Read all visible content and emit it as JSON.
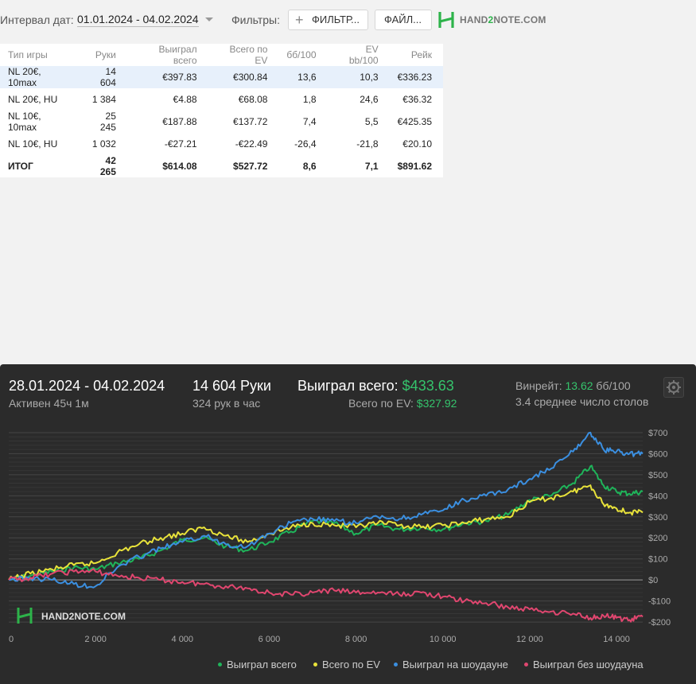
{
  "topbar": {
    "date_interval_label": "Интервал дат:",
    "date_interval_value": "01.01.2024 - 04.02.2024",
    "filters_label": "Фильтры:",
    "filter_button": "ФИЛЬТР...",
    "file_button": "ФАЙЛ...",
    "logo_text_a": "HAND",
    "logo_text_2": "2",
    "logo_text_b": "NOTE.COM"
  },
  "table": {
    "headers": [
      "Тип игры",
      "Руки",
      "Выиграл всего",
      "Всего по EV",
      "бб/100",
      "EV bb/100",
      "Рейк"
    ],
    "rows": [
      {
        "game": "NL 20€, 10max",
        "hands": "14 604",
        "won": "€397.83",
        "ev": "€300.84",
        "bb100": "13,6",
        "evbb100": "10,3",
        "rake": "€336.23",
        "selected": true
      },
      {
        "game": "NL 20€, HU",
        "hands": "1 384",
        "won": "€4.88",
        "ev": "€68.08",
        "bb100": "1,8",
        "evbb100": "24,6",
        "rake": "€36.32"
      },
      {
        "game": "NL 10€, 10max",
        "hands": "25 245",
        "won": "€187.88",
        "ev": "€137.72",
        "bb100": "7,4",
        "evbb100": "5,5",
        "rake": "€425.35"
      },
      {
        "game": "NL 10€, HU",
        "hands": "1 032",
        "won": "-€27.21",
        "ev": "-€22.49",
        "bb100": "-26,4",
        "evbb100": "-21,8",
        "rake": "€20.10"
      }
    ],
    "total": {
      "game": "ИТОГ",
      "hands": "42 265",
      "won": "$614.08",
      "ev": "$527.72",
      "bb100": "8,6",
      "evbb100": "7,1",
      "rake": "$891.62"
    }
  },
  "panel": {
    "date_range": "28.01.2024 - 04.02.2024",
    "active": "Активен 45ч 1м",
    "hands": "14 604 Руки",
    "hands_per_hour": "324 рук в час",
    "won_label": "Выиграл всего:",
    "won_value": "$433.63",
    "ev_label": "Всего по EV:",
    "ev_value": "$327.92",
    "winrate_label": "Винрейт:",
    "winrate_value": "13.62",
    "winrate_unit": "бб/100",
    "avg_tables": "3.4 среднее число столов"
  },
  "chart_data": {
    "type": "line",
    "x_ticks": [
      0,
      2000,
      4000,
      6000,
      8000,
      10000,
      12000,
      14000
    ],
    "x_tick_labels": [
      "0",
      "2 000",
      "4 000",
      "6 000",
      "8 000",
      "10 000",
      "12 000",
      "14 000"
    ],
    "xlim": [
      0,
      14604
    ],
    "y_ticks": [
      -200,
      -100,
      0,
      100,
      200,
      300,
      400,
      500,
      600,
      700
    ],
    "y_tick_labels": [
      "-$200",
      "-$100",
      "$0",
      "$100",
      "$200",
      "$300",
      "$400",
      "$500",
      "$600",
      "$700"
    ],
    "ylim": [
      -230,
      730
    ],
    "grid": true,
    "legend_position": "bottom",
    "watermark": "HAND2NOTE.COM",
    "series": [
      {
        "name": "Выиграл всего",
        "color": "#1fb45a",
        "x": [
          0,
          500,
          1000,
          1500,
          2000,
          2500,
          3000,
          3500,
          4000,
          4500,
          5000,
          5500,
          6000,
          6500,
          7000,
          7500,
          8000,
          8500,
          9000,
          9500,
          10000,
          10500,
          11000,
          11500,
          12000,
          12500,
          13000,
          13400,
          13700,
          14000,
          14300,
          14604
        ],
        "y": [
          0,
          20,
          40,
          60,
          50,
          80,
          100,
          140,
          190,
          200,
          160,
          140,
          180,
          230,
          280,
          270,
          220,
          260,
          240,
          250,
          240,
          270,
          280,
          310,
          380,
          400,
          460,
          540,
          450,
          420,
          410,
          420
        ]
      },
      {
        "name": "Всего по EV",
        "color": "#e8e23a",
        "x": [
          0,
          500,
          1000,
          1500,
          2000,
          2500,
          3000,
          3500,
          4000,
          4500,
          5000,
          5500,
          6000,
          6500,
          7000,
          7500,
          8000,
          8500,
          9000,
          9500,
          10000,
          10500,
          11000,
          11500,
          12000,
          12500,
          13000,
          13400,
          13700,
          14000,
          14300,
          14604
        ],
        "y": [
          0,
          30,
          50,
          70,
          80,
          130,
          170,
          200,
          220,
          250,
          210,
          180,
          220,
          250,
          270,
          260,
          250,
          270,
          260,
          250,
          260,
          270,
          290,
          300,
          370,
          390,
          420,
          450,
          360,
          340,
          320,
          320
        ]
      },
      {
        "name": "Выиграл на шоудауне",
        "color": "#3b8fe0",
        "x": [
          0,
          500,
          1000,
          1500,
          2000,
          2500,
          3000,
          3500,
          4000,
          4500,
          5000,
          5500,
          6000,
          6500,
          7000,
          7500,
          8000,
          8500,
          9000,
          9500,
          10000,
          10500,
          11000,
          11500,
          12000,
          12500,
          13000,
          13400,
          13700,
          14000,
          14300,
          14604
        ],
        "y": [
          0,
          10,
          0,
          -20,
          -30,
          60,
          110,
          150,
          180,
          210,
          170,
          160,
          220,
          270,
          290,
          280,
          270,
          300,
          290,
          310,
          330,
          380,
          400,
          430,
          480,
          530,
          610,
          700,
          620,
          610,
          600,
          600
        ]
      },
      {
        "name": "Выиграл без шоудауна",
        "color": "#e0466f",
        "x": [
          0,
          500,
          1000,
          1500,
          2000,
          2500,
          3000,
          3500,
          4000,
          4500,
          5000,
          5500,
          6000,
          6500,
          7000,
          7500,
          8000,
          8500,
          9000,
          9500,
          10000,
          10500,
          11000,
          11500,
          12000,
          12500,
          13000,
          13400,
          13700,
          14000,
          14300,
          14604
        ],
        "y": [
          0,
          10,
          30,
          40,
          40,
          20,
          10,
          0,
          -10,
          -20,
          -30,
          -40,
          -60,
          -70,
          -60,
          -50,
          -60,
          -60,
          -70,
          -60,
          -80,
          -100,
          -110,
          -130,
          -140,
          -150,
          -160,
          -180,
          -170,
          -180,
          -190,
          -175
        ]
      }
    ]
  }
}
